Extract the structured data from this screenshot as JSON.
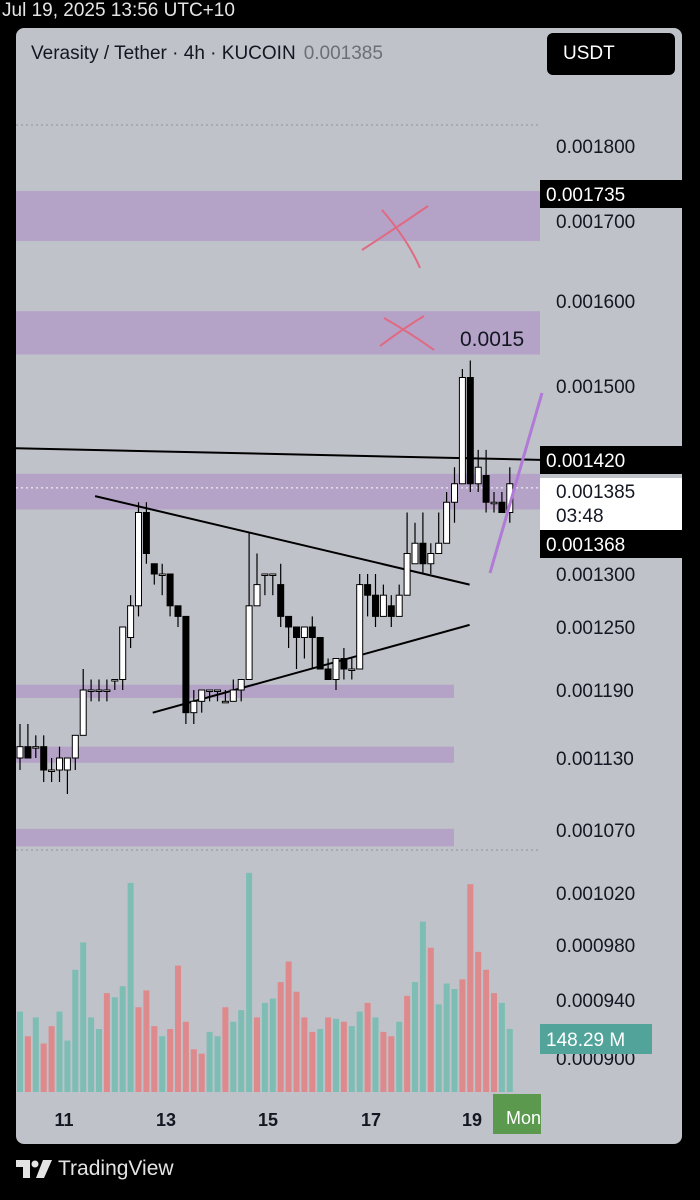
{
  "timestamp": "Jul 19, 2025 13:56 UTC+10",
  "header": {
    "pair": "Verasity / Tether · 4h · KUCOIN",
    "last_price": "0.001385",
    "currency_button": "USDT"
  },
  "footer": {
    "brand": "TradingView",
    "logo_icon": "tradingview-logo-icon"
  },
  "price_axis": {
    "ticks": [
      "0.001800",
      "0.001700",
      "0.001600",
      "0.001500",
      "0.001300",
      "0.001250",
      "0.001190",
      "0.001130",
      "0.001070",
      "0.001020",
      "0.000980",
      "0.000940",
      "0.000900"
    ],
    "tag_1735": "0.001735",
    "tag_1420": "0.001420",
    "current_price": "0.001385",
    "countdown": "03:48",
    "tag_1368": "0.001368",
    "annotation_price": "0.0015",
    "volume_value": "148.29 M"
  },
  "time_axis": {
    "labels": [
      "11",
      "13",
      "15",
      "17",
      "19"
    ],
    "next_label": "Mon"
  },
  "colors": {
    "panel_bg": "#bfc2c9",
    "zone": "#b297c6",
    "up_volume": "#7dbdb4",
    "down_volume": "#de8a8c",
    "candle_up": "#ffffff",
    "candle_down": "#000000",
    "cross_marks": "#e06a82",
    "trend_arrow": "#b07ad6",
    "volume_badge": "#52a49a",
    "mon_badge": "#5b9a4e"
  },
  "chart_data": {
    "type": "candlestick",
    "symbol": "Verasity / Tether",
    "interval": "4h",
    "exchange": "KUCOIN",
    "price_unit": "USDT",
    "price_scale_ticks": [
      0.0018,
      0.0017,
      0.0016,
      0.0015,
      0.0013,
      0.00125,
      0.00119,
      0.00113,
      0.00107,
      0.00102,
      0.00098,
      0.00094,
      0.0009
    ],
    "highlighted_levels": [
      0.001735,
      0.00142,
      0.001368
    ],
    "current_price": 0.001385,
    "x_labels": [
      "11",
      "13",
      "15",
      "17",
      "19",
      "Mon"
    ],
    "zones": [
      [
        0.001675,
        0.00174
      ],
      [
        0.001537,
        0.001588
      ],
      [
        0.001363,
        0.001402
      ],
      [
        0.001183,
        0.001195
      ],
      [
        0.001126,
        0.00114
      ],
      [
        0.001057,
        0.001071
      ]
    ],
    "candles": [
      [
        0.00113,
        0.00114,
        0.00116,
        0.00112
      ],
      [
        0.00114,
        0.00113,
        0.00116,
        0.00113
      ],
      [
        0.00114,
        0.00114,
        0.00115,
        0.00113
      ],
      [
        0.00114,
        0.00112,
        0.00115,
        0.00111
      ],
      [
        0.00112,
        0.00112,
        0.00113,
        0.00111
      ],
      [
        0.00112,
        0.00113,
        0.00114,
        0.00111
      ],
      [
        0.00112,
        0.00113,
        0.00113,
        0.0011
      ],
      [
        0.00113,
        0.00115,
        0.00115,
        0.00112
      ],
      [
        0.00115,
        0.00119,
        0.00121,
        0.00115
      ],
      [
        0.00119,
        0.00119,
        0.0012,
        0.00118
      ],
      [
        0.00119,
        0.00119,
        0.0012,
        0.00118
      ],
      [
        0.00119,
        0.00119,
        0.0012,
        0.00118
      ],
      [
        0.0012,
        0.0012,
        0.0012,
        0.00119
      ],
      [
        0.0012,
        0.00125,
        0.00125,
        0.00119
      ],
      [
        0.00124,
        0.00127,
        0.00128,
        0.00123
      ],
      [
        0.00127,
        0.00136,
        0.00137,
        0.00126
      ],
      [
        0.00136,
        0.00132,
        0.00137,
        0.00131
      ],
      [
        0.00131,
        0.0013,
        0.00131,
        0.00129
      ],
      [
        0.0013,
        0.0013,
        0.00131,
        0.00128
      ],
      [
        0.0013,
        0.00127,
        0.0013,
        0.00126
      ],
      [
        0.00127,
        0.00126,
        0.00127,
        0.00125
      ],
      [
        0.00126,
        0.00117,
        0.00126,
        0.00116
      ],
      [
        0.00117,
        0.00118,
        0.00119,
        0.00116
      ],
      [
        0.00118,
        0.00119,
        0.00119,
        0.00117
      ],
      [
        0.00119,
        0.00119,
        0.00119,
        0.00118
      ],
      [
        0.00119,
        0.00119,
        0.00119,
        0.00118
      ],
      [
        0.00118,
        0.00118,
        0.00119,
        0.00118
      ],
      [
        0.00118,
        0.00119,
        0.0012,
        0.00118
      ],
      [
        0.00119,
        0.0012,
        0.0012,
        0.00118
      ],
      [
        0.0012,
        0.00127,
        0.00134,
        0.0012
      ],
      [
        0.00127,
        0.00129,
        0.00132,
        0.00127
      ],
      [
        0.0013,
        0.0013,
        0.0013,
        0.00128
      ],
      [
        0.0013,
        0.0013,
        0.0013,
        0.00128
      ],
      [
        0.00129,
        0.00126,
        0.00131,
        0.00125
      ],
      [
        0.00126,
        0.00125,
        0.00126,
        0.00123
      ],
      [
        0.00125,
        0.00124,
        0.00125,
        0.00121
      ],
      [
        0.00124,
        0.00125,
        0.00125,
        0.00122
      ],
      [
        0.00125,
        0.00124,
        0.00126,
        0.00121
      ],
      [
        0.00124,
        0.00121,
        0.00124,
        0.00121
      ],
      [
        0.00121,
        0.0012,
        0.00122,
        0.0012
      ],
      [
        0.0012,
        0.00122,
        0.00122,
        0.00119
      ],
      [
        0.00122,
        0.00121,
        0.00123,
        0.0012
      ],
      [
        0.00121,
        0.00121,
        0.00122,
        0.0012
      ],
      [
        0.00121,
        0.00129,
        0.0013,
        0.00121
      ],
      [
        0.00129,
        0.00128,
        0.0013,
        0.00126
      ],
      [
        0.00128,
        0.00126,
        0.0013,
        0.00125
      ],
      [
        0.00126,
        0.00128,
        0.00129,
        0.00126
      ],
      [
        0.00127,
        0.00126,
        0.00128,
        0.00125
      ],
      [
        0.00126,
        0.00128,
        0.00129,
        0.00126
      ],
      [
        0.00128,
        0.00132,
        0.00136,
        0.00128
      ],
      [
        0.00131,
        0.00133,
        0.00135,
        0.00131
      ],
      [
        0.00133,
        0.00131,
        0.00136,
        0.0013
      ],
      [
        0.00131,
        0.00132,
        0.00133,
        0.0013
      ],
      [
        0.00132,
        0.00133,
        0.00136,
        0.00132
      ],
      [
        0.00133,
        0.00137,
        0.00138,
        0.00133
      ],
      [
        0.00137,
        0.00139,
        0.00141,
        0.00135
      ],
      [
        0.00139,
        0.00151,
        0.00152,
        0.00139
      ],
      [
        0.00151,
        0.00139,
        0.00153,
        0.00138
      ],
      [
        0.00139,
        0.00141,
        0.00143,
        0.00138
      ],
      [
        0.0014,
        0.00137,
        0.00143,
        0.00136
      ],
      [
        0.00137,
        0.00137,
        0.00138,
        0.00136
      ],
      [
        0.00137,
        0.00136,
        0.00138,
        0.00136
      ],
      [
        0.00136,
        0.00139,
        0.00141,
        0.00135
      ]
    ],
    "volume": [
      [
        0.000932,
        "up"
      ],
      [
        0.000915,
        "down"
      ],
      [
        0.000928,
        "up"
      ],
      [
        0.00091,
        "down"
      ],
      [
        0.000922,
        "down"
      ],
      [
        0.000932,
        "up"
      ],
      [
        0.000912,
        "up"
      ],
      [
        0.000962,
        "up"
      ],
      [
        0.000982,
        "up"
      ],
      [
        0.000928,
        "up"
      ],
      [
        0.00092,
        "up"
      ],
      [
        0.000945,
        "down"
      ],
      [
        0.000942,
        "up"
      ],
      [
        0.00095,
        "up"
      ],
      [
        0.001028,
        "up"
      ],
      [
        0.000935,
        "down"
      ],
      [
        0.000947,
        "down"
      ],
      [
        0.000922,
        "down"
      ],
      [
        0.000915,
        "up"
      ],
      [
        0.00092,
        "down"
      ],
      [
        0.000965,
        "down"
      ],
      [
        0.000925,
        "down"
      ],
      [
        0.000906,
        "down"
      ],
      [
        0.000903,
        "down"
      ],
      [
        0.000918,
        "up"
      ],
      [
        0.000915,
        "up"
      ],
      [
        0.000935,
        "down"
      ],
      [
        0.000925,
        "up"
      ],
      [
        0.000933,
        "up"
      ],
      [
        0.001036,
        "up"
      ],
      [
        0.000928,
        "down"
      ],
      [
        0.000938,
        "up"
      ],
      [
        0.000941,
        "up"
      ],
      [
        0.000953,
        "down"
      ],
      [
        0.000968,
        "down"
      ],
      [
        0.000946,
        "down"
      ],
      [
        0.000928,
        "down"
      ],
      [
        0.000918,
        "down"
      ],
      [
        0.00092,
        "up"
      ],
      [
        0.000928,
        "down"
      ],
      [
        0.000927,
        "up"
      ],
      [
        0.000925,
        "down"
      ],
      [
        0.000922,
        "up"
      ],
      [
        0.000932,
        "up"
      ],
      [
        0.000938,
        "down"
      ],
      [
        0.000928,
        "up"
      ],
      [
        0.000918,
        "down"
      ],
      [
        0.000915,
        "down"
      ],
      [
        0.000925,
        "up"
      ],
      [
        0.000943,
        "down"
      ],
      [
        0.000953,
        "up"
      ],
      [
        0.000998,
        "up"
      ],
      [
        0.000978,
        "down"
      ],
      [
        0.000937,
        "up"
      ],
      [
        0.000952,
        "up"
      ],
      [
        0.000948,
        "up"
      ],
      [
        0.000955,
        "down"
      ],
      [
        0.001027,
        "down"
      ],
      [
        0.000975,
        "down"
      ],
      [
        0.000962,
        "down"
      ],
      [
        0.000945,
        "down"
      ],
      [
        0.000938,
        "up"
      ],
      [
        0.00092,
        "up"
      ]
    ],
    "volume_note": "volume bars read against the price axis; latest volume 148.29 M",
    "trend_lines": [
      {
        "from": [
          0,
          0.001432
        ],
        "to": [
          1,
          0.001419
        ]
      },
      {
        "from": [
          0.17,
          0.001376
        ],
        "to": [
          0.9,
          0.00129
        ]
      },
      {
        "from": [
          0.28,
          0.00117
        ],
        "to": [
          0.9,
          0.001252
        ]
      }
    ]
  }
}
